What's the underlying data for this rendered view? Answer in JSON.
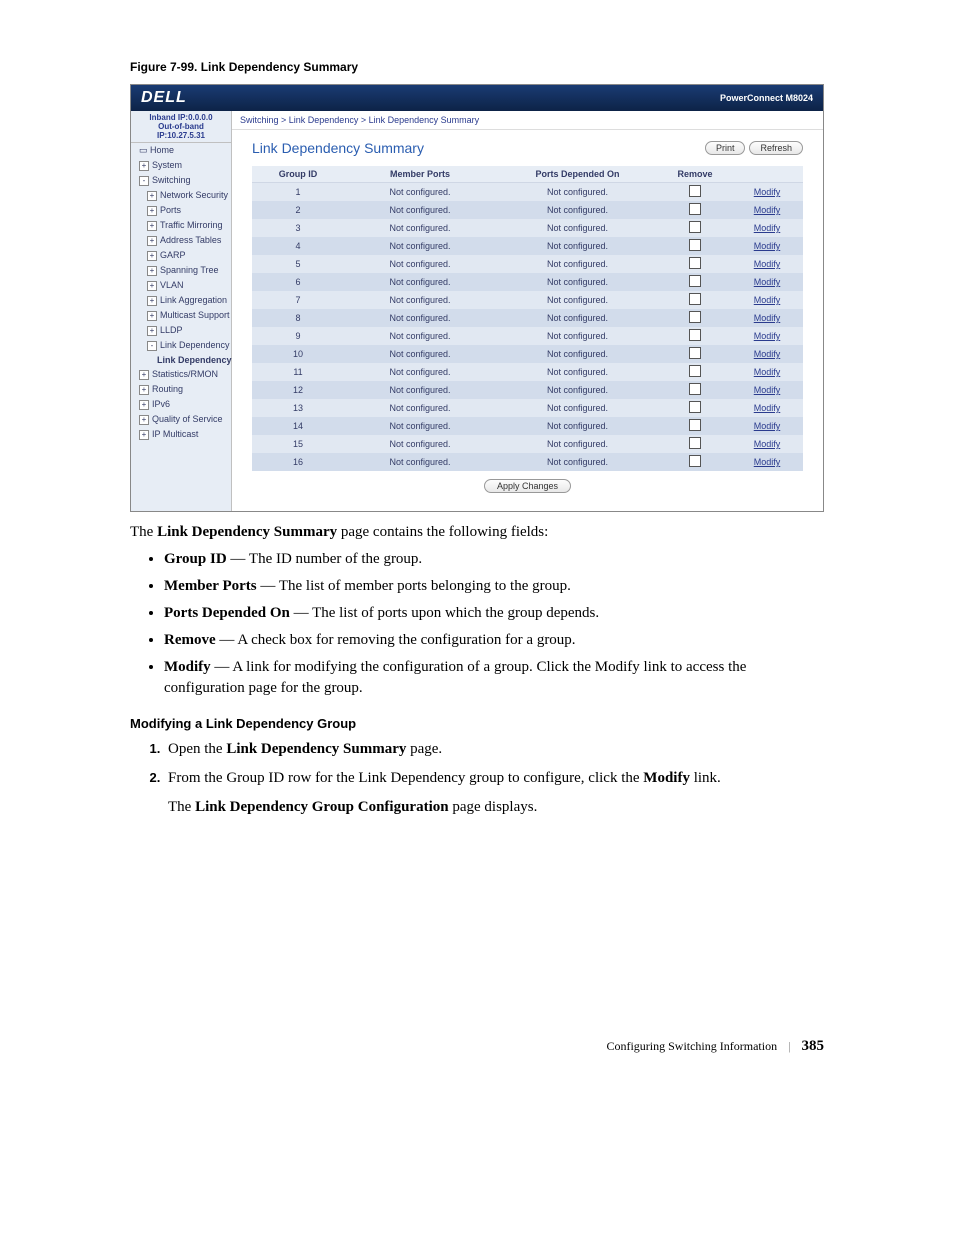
{
  "figure_caption": "Figure 7-99.    Link Dependency Summary",
  "screenshot": {
    "logo_text": "DELL",
    "model_text": "PowerConnect M8024",
    "sidebar_ip": {
      "inband": "Inband IP:0.0.0.0",
      "oob": "Out-of-band IP:10.27.5.31"
    },
    "sidebar": [
      {
        "label": "Home",
        "level": 1,
        "exp": "▭",
        "sel": false
      },
      {
        "label": "System",
        "level": 1,
        "exp": "+",
        "sel": false
      },
      {
        "label": "Switching",
        "level": 1,
        "exp": "-",
        "sel": false
      },
      {
        "label": "Network Security",
        "level": 2,
        "exp": "+",
        "sel": false
      },
      {
        "label": "Ports",
        "level": 2,
        "exp": "+",
        "sel": false
      },
      {
        "label": "Traffic Mirroring",
        "level": 2,
        "exp": "+",
        "sel": false
      },
      {
        "label": "Address Tables",
        "level": 2,
        "exp": "+",
        "sel": false
      },
      {
        "label": "GARP",
        "level": 2,
        "exp": "+",
        "sel": false
      },
      {
        "label": "Spanning Tree",
        "level": 2,
        "exp": "+",
        "sel": false
      },
      {
        "label": "VLAN",
        "level": 2,
        "exp": "+",
        "sel": false
      },
      {
        "label": "Link Aggregation",
        "level": 2,
        "exp": "+",
        "sel": false
      },
      {
        "label": "Multicast Support",
        "level": 2,
        "exp": "+",
        "sel": false
      },
      {
        "label": "LLDP",
        "level": 2,
        "exp": "+",
        "sel": false
      },
      {
        "label": "Link Dependency",
        "level": 2,
        "exp": "-",
        "sel": false
      },
      {
        "label": "Link Dependency",
        "level": 3,
        "exp": "",
        "sel": true
      },
      {
        "label": "Statistics/RMON",
        "level": 1,
        "exp": "+",
        "sel": false
      },
      {
        "label": "Routing",
        "level": 1,
        "exp": "+",
        "sel": false
      },
      {
        "label": "IPv6",
        "level": 1,
        "exp": "+",
        "sel": false
      },
      {
        "label": "Quality of Service",
        "level": 1,
        "exp": "+",
        "sel": false
      },
      {
        "label": "IP Multicast",
        "level": 1,
        "exp": "+",
        "sel": false
      }
    ],
    "breadcrumb": "Switching > Link Dependency > Link Dependency Summary",
    "content_title": "Link Dependency Summary",
    "print_label": "Print",
    "refresh_label": "Refresh",
    "table": {
      "headers": {
        "group_id": "Group ID",
        "member_ports": "Member Ports",
        "ports_depended": "Ports Depended On",
        "remove": "Remove",
        "modify": ""
      },
      "modify_text": "Modify",
      "cell_text": "Not configured.",
      "row_count": 16
    },
    "apply_label": "Apply Changes"
  },
  "body": {
    "intro_prefix": "The ",
    "intro_bold": "Link Dependency Summary",
    "intro_suffix": " page contains the following fields:",
    "bullets": [
      {
        "term": "Group ID",
        "desc": " — The ID number of the group."
      },
      {
        "term": "Member Ports",
        "desc": " — The list of member ports belonging to the group."
      },
      {
        "term": "Ports Depended On",
        "desc": " — The list of ports upon which the group depends."
      },
      {
        "term": "Remove",
        "desc": " — A check box for removing the configuration for a group."
      },
      {
        "term": "Modify",
        "desc": " — A link for modifying the configuration of a group. Click the Modify link to access the configuration page for the group."
      }
    ],
    "section_heading": "Modifying a Link Dependency Group",
    "step1_a": "Open the ",
    "step1_b": "Link Dependency Summary",
    "step1_c": " page.",
    "step2_a": "From the Group ID row for the Link Dependency group to configure, click the ",
    "step2_b": "Modify",
    "step2_c": " link.",
    "step2_result_a": "The ",
    "step2_result_b": "Link Dependency Group Configuration",
    "step2_result_c": " page displays."
  },
  "footer": {
    "text": "Configuring Switching Information",
    "page": "385"
  },
  "colors": {
    "header_bg": "#1a3b73",
    "side_bg": "#e7edf5",
    "row_odd": "#e1e8f2",
    "row_even": "#d2dceb",
    "link_color": "#2a3b8e",
    "title_color": "#2a5db0"
  }
}
